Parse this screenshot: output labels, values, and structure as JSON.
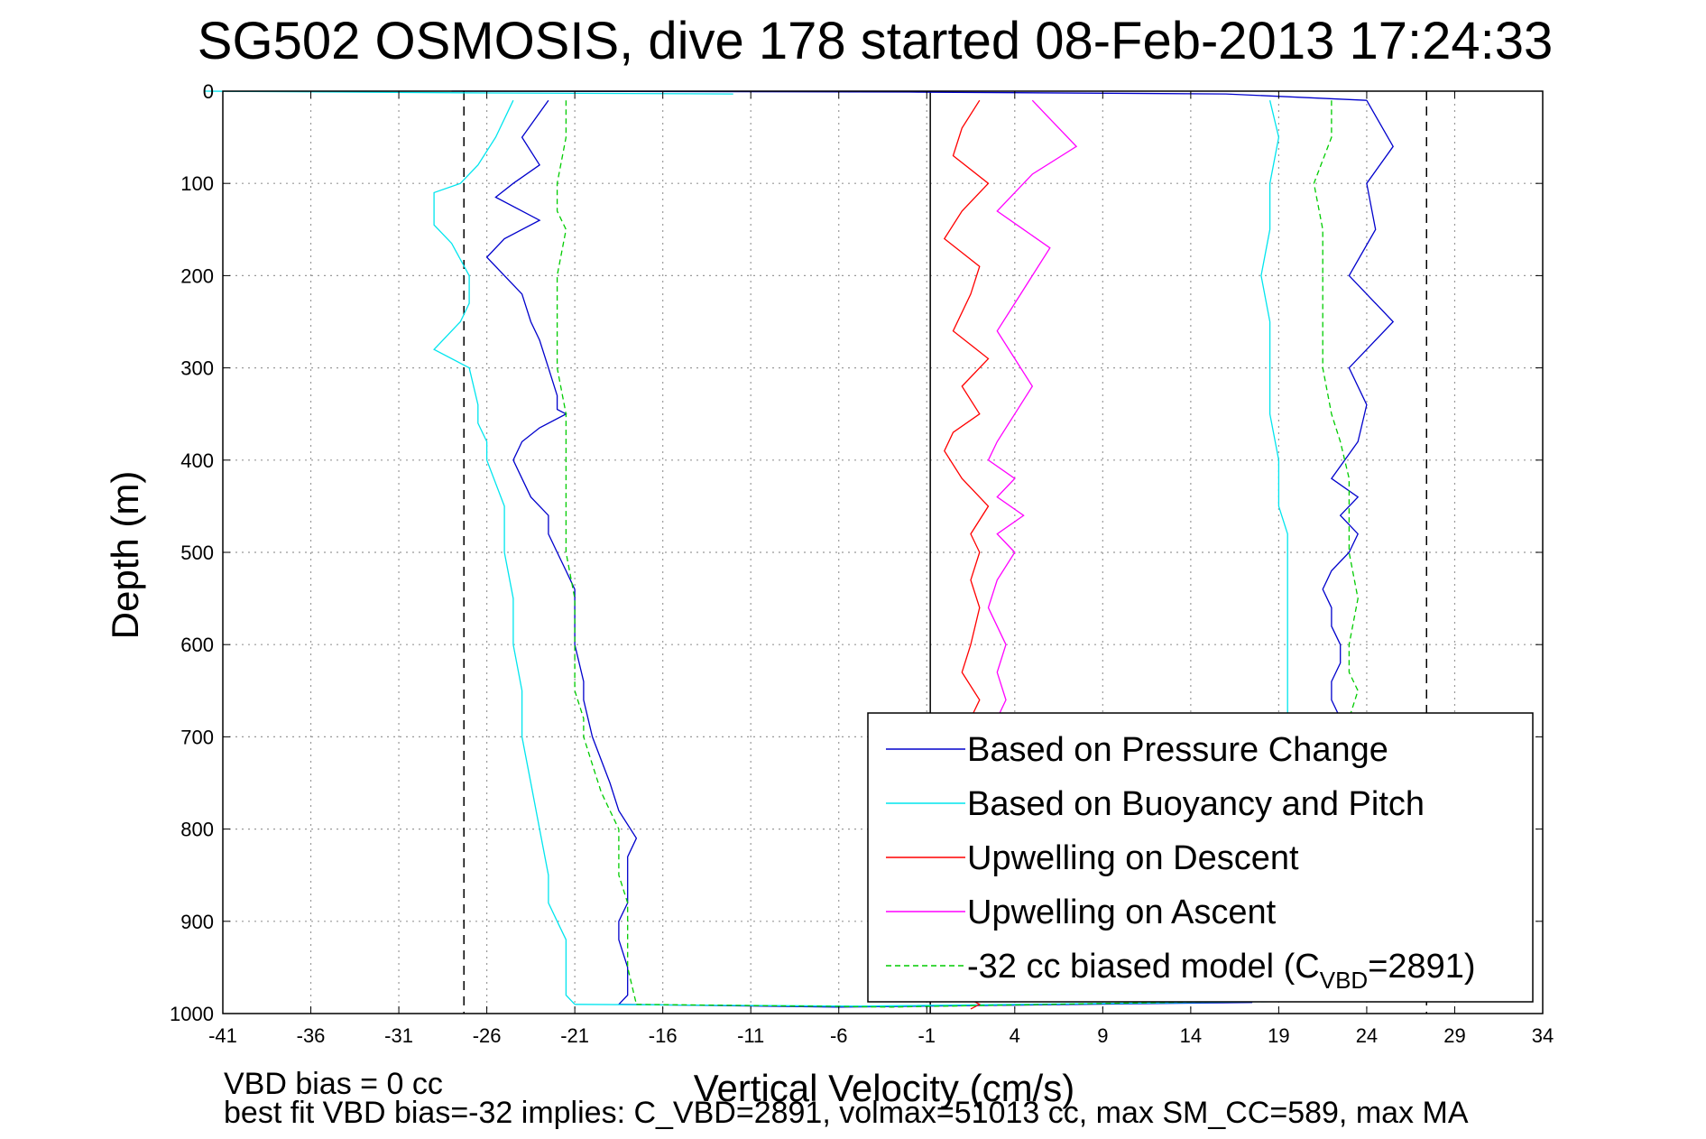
{
  "chart_data": {
    "type": "line",
    "title": "SG502 OSMOSIS, dive 178 started 08-Feb-2013 17:24:33",
    "xlabel": "Vertical Velocity (cm/s)",
    "ylabel": "Depth (m)",
    "xlim": [
      -41,
      34
    ],
    "ylim": [
      0,
      1000
    ],
    "y_reversed": true,
    "grid": true,
    "x_ticks": [
      "-41",
      "-36",
      "-31",
      "-26",
      "-21",
      "-16",
      "-11",
      "-6",
      "-1",
      "4",
      "9",
      "14",
      "19",
      "24",
      "29",
      "34"
    ],
    "y_ticks": [
      "0",
      "100",
      "200",
      "300",
      "400",
      "500",
      "600",
      "700",
      "800",
      "900",
      "1000"
    ],
    "legend_position": "bottom-right",
    "vertical_lines": [
      {
        "x": -27.3,
        "style": "dashed",
        "color": "#000000"
      },
      {
        "x": -0.8,
        "style": "solid",
        "color": "#000000"
      },
      {
        "x": 27.4,
        "style": "dashed",
        "color": "#000000"
      }
    ],
    "series": [
      {
        "name": "Based on Pressure Change",
        "color": "#0000cc",
        "style": "solid",
        "segments": [
          {
            "x": [
              -22.5,
              -24,
              -23,
              -24.5,
              -25.5,
              -23,
              -25,
              -26,
              -24,
              -23.5,
              -23,
              -22.5,
              -22,
              -22,
              -21.5,
              -23,
              -24,
              -24.5,
              -24,
              -23.5,
              -22.5,
              -22.5,
              -22,
              -21.5,
              -21,
              -21,
              -21,
              -20.5,
              -20.5,
              -20,
              -19,
              -18.5,
              -17.5,
              -18,
              -18,
              -18,
              -18.5,
              -18.5,
              -18,
              -18,
              -18.5
            ],
            "y": [
              10,
              50,
              80,
              100,
              115,
              140,
              160,
              180,
              220,
              250,
              270,
              300,
              330,
              345,
              350,
              365,
              380,
              400,
              420,
              440,
              460,
              480,
              500,
              520,
              540,
              560,
              600,
              640,
              660,
              700,
              750,
              780,
              810,
              830,
              860,
              880,
              900,
              920,
              950,
              980,
              990
            ]
          },
          {
            "x": [
              -18.5,
              -6,
              17.5
            ],
            "y": [
              990,
              993,
              988
            ]
          },
          {
            "x": [
              24,
              25.5,
              24,
              24.5,
              23,
              25.5,
              24,
              23,
              24,
              23.5,
              22,
              23.5,
              22.5,
              23.5,
              23,
              22,
              21.5,
              22,
              22,
              22.5,
              22.5,
              22,
              22,
              22.5
            ],
            "y": [
              10,
              60,
              100,
              150,
              200,
              250,
              280,
              300,
              340,
              380,
              420,
              440,
              460,
              480,
              500,
              520,
              540,
              560,
              580,
              600,
              620,
              640,
              660,
              680
            ]
          },
          {
            "x": [
              24,
              16,
              -2,
              -28
            ],
            "y": [
              10,
              3,
              1,
              0
            ]
          }
        ]
      },
      {
        "name": "Based on Buoyancy and Pitch",
        "color": "#00e5ee",
        "style": "solid",
        "segments": [
          {
            "x": [
              -24.5,
              -25.5,
              -26.5,
              -27.5,
              -29,
              -29,
              -28,
              -27,
              -27,
              -27.5,
              -29,
              -27,
              -26.5,
              -26.5,
              -26,
              -26,
              -25,
              -25,
              -24.5,
              -24.5,
              -24,
              -24,
              -24,
              -23.5,
              -23,
              -22.5,
              -22.5,
              -22,
              -21.5,
              -21.5,
              -21.5,
              -21
            ],
            "y": [
              10,
              50,
              80,
              100,
              110,
              145,
              165,
              200,
              230,
              250,
              280,
              300,
              340,
              360,
              380,
              400,
              450,
              500,
              550,
              600,
              650,
              680,
              700,
              750,
              800,
              850,
              880,
              900,
              920,
              950,
              980,
              990
            ]
          },
          {
            "x": [
              -21,
              -5,
              19
            ],
            "y": [
              990,
              992,
              987
            ]
          },
          {
            "x": [
              18.5,
              19,
              18.5,
              18.5,
              18,
              18.5,
              18.5,
              18.5,
              19,
              19,
              19.5,
              19.5,
              19.5,
              19.5,
              19.5,
              19.5,
              19.5,
              19.5,
              19.5
            ],
            "y": [
              10,
              50,
              100,
              150,
              200,
              250,
              300,
              350,
              400,
              450,
              480,
              500,
              520,
              550,
              580,
              600,
              620,
              650,
              680
            ]
          },
          {
            "x": [
              -42,
              -26,
              -12
            ],
            "y": [
              0,
              2,
              3
            ]
          }
        ]
      },
      {
        "name": "Upwelling on Descent",
        "color": "#ff0000",
        "style": "solid",
        "segments": [
          {
            "x": [
              2,
              1,
              0.5,
              2.5,
              1,
              0,
              2,
              1.5,
              0.5,
              2.5,
              1,
              2,
              0.5,
              0,
              1,
              2.5,
              1.5,
              2,
              1.5,
              2,
              1.5,
              1,
              2,
              1.5
            ],
            "y": [
              10,
              40,
              70,
              100,
              130,
              160,
              190,
              220,
              260,
              290,
              320,
              350,
              370,
              390,
              420,
              450,
              480,
              500,
              530,
              560,
              600,
              630,
              660,
              680
            ]
          },
          {
            "x": [
              1.5,
              2,
              1.5
            ],
            "y": [
              985,
              990,
              995
            ]
          }
        ]
      },
      {
        "name": "Upwelling on Ascent",
        "color": "#ff00ff",
        "style": "solid",
        "segments": [
          {
            "x": [
              5,
              6,
              7.5,
              5,
              4,
              3,
              4.5,
              6,
              5,
              4,
              3,
              4,
              5,
              4,
              3,
              2.5,
              4,
              3,
              4.5,
              3,
              4,
              3,
              2.5,
              3.5,
              3,
              3.5,
              3
            ],
            "y": [
              10,
              30,
              60,
              90,
              110,
              130,
              150,
              170,
              200,
              230,
              260,
              290,
              320,
              350,
              380,
              400,
              420,
              440,
              460,
              480,
              500,
              530,
              560,
              600,
              630,
              660,
              680
            ]
          }
        ]
      },
      {
        "name": "-32 cc biased model (C_VBD=2891)",
        "color": "#00cc00",
        "style": "dashed",
        "segments": [
          {
            "x": [
              -21.5,
              -21.5,
              -22,
              -22,
              -21.5,
              -22,
              -22,
              -22,
              -21.5,
              -21.5,
              -21.5,
              -21.5,
              -21,
              -21,
              -21,
              -20.5,
              -20.5,
              -20,
              -19.5,
              -19,
              -18.5,
              -18.5,
              -18.5,
              -18,
              -18,
              -18,
              -17.5
            ],
            "y": [
              10,
              50,
              100,
              130,
              150,
              200,
              250,
              300,
              350,
              400,
              450,
              500,
              550,
              600,
              650,
              680,
              700,
              730,
              760,
              780,
              800,
              830,
              850,
              880,
              900,
              950,
              990
            ]
          },
          {
            "x": [
              -17.5,
              -3,
              18.5
            ],
            "y": [
              990,
              993,
              986
            ]
          },
          {
            "x": [
              22,
              22,
              21,
              21.5,
              21.5,
              21.5,
              21.5,
              22,
              22.5,
              23,
              23,
              23,
              23.5,
              23,
              23,
              23.5,
              23
            ],
            "y": [
              10,
              50,
              100,
              150,
              200,
              250,
              300,
              350,
              380,
              420,
              460,
              500,
              550,
              600,
              630,
              650,
              680
            ]
          }
        ]
      }
    ],
    "legend": [
      {
        "label": "Based on Pressure Change",
        "color": "#0000cc",
        "style": "solid"
      },
      {
        "label": "Based on Buoyancy and Pitch",
        "color": "#00e5ee",
        "style": "solid"
      },
      {
        "label": "Upwelling on Descent",
        "color": "#ff0000",
        "style": "solid"
      },
      {
        "label": "Upwelling on Ascent",
        "color": "#ff00ff",
        "style": "solid"
      },
      {
        "label_prefix": "-32 cc biased model (C",
        "label_sub": "VBD",
        "label_suffix": "=2891)",
        "color": "#00cc00",
        "style": "dashed"
      }
    ],
    "annotations": [
      "VBD bias = 0 cc",
      "best fit VBD bias=-32 implies: C_VBD=2891, volmax=51013 cc, max SM_CC=589, max MA"
    ]
  }
}
